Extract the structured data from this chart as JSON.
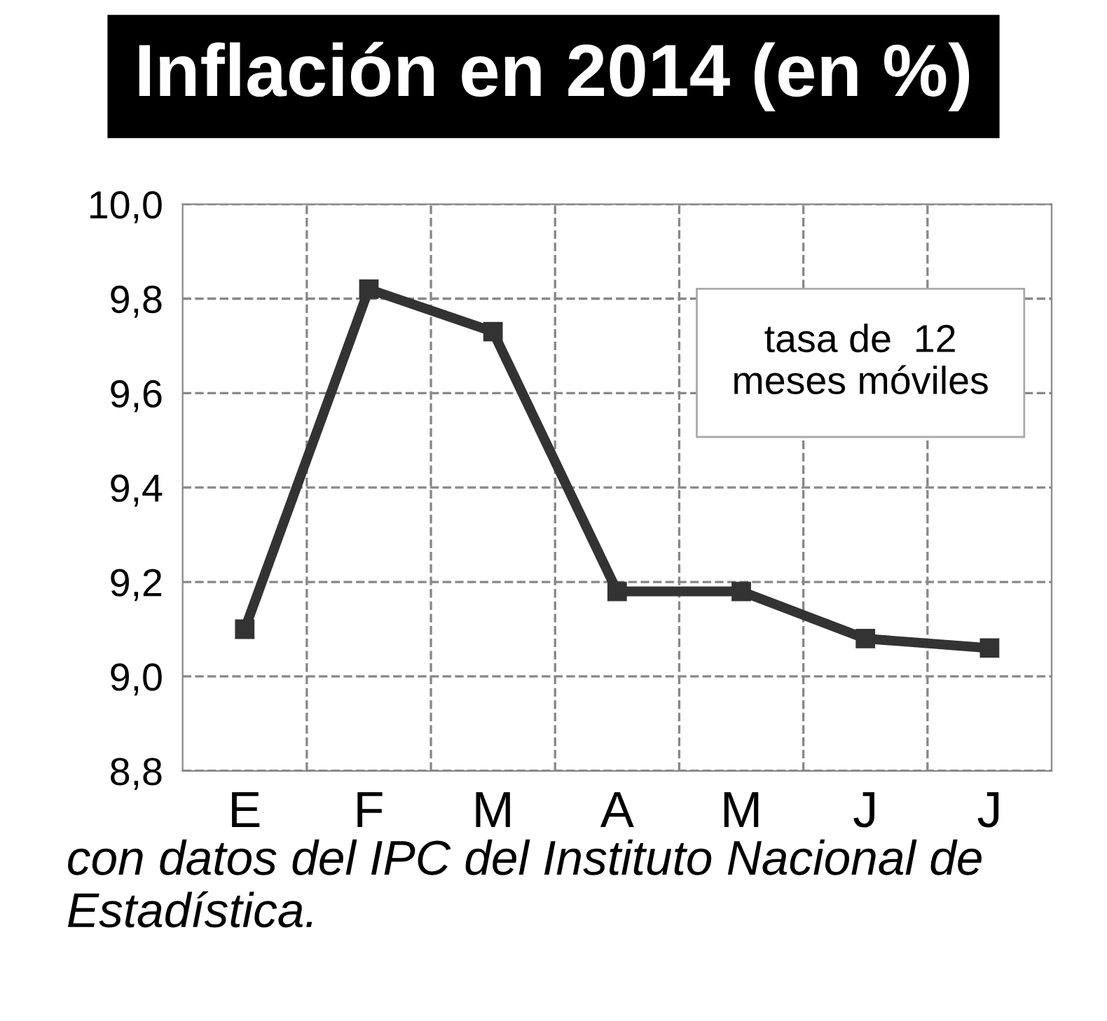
{
  "chart_data": {
    "type": "line",
    "title": "Inflación en 2014 (en %)",
    "categories": [
      "E",
      "F",
      "M",
      "A",
      "M",
      "J",
      "J"
    ],
    "series": [
      {
        "color": "#333333",
        "values": [
          9.1,
          9.82,
          9.73,
          9.18,
          9.18,
          9.08,
          9.06
        ]
      }
    ],
    "ylim": [
      8.8,
      10.0
    ],
    "yticks": [
      {
        "value": 8.8,
        "label": "8,8"
      },
      {
        "value": 9.0,
        "label": "9,0"
      },
      {
        "value": 9.2,
        "label": "9,2"
      },
      {
        "value": 9.4,
        "label": "9,4"
      },
      {
        "value": 9.6,
        "label": "9,6"
      },
      {
        "value": 9.8,
        "label": "9,8"
      },
      {
        "value": 10.0,
        "label": "10,0"
      }
    ],
    "grid": true,
    "marker": "square",
    "line_style": "solid",
    "legend": false,
    "annotations": [
      "tasa de  12\nmeses móviles",
      "con datos del IPC del Instituto Nacional de Estadística."
    ]
  }
}
